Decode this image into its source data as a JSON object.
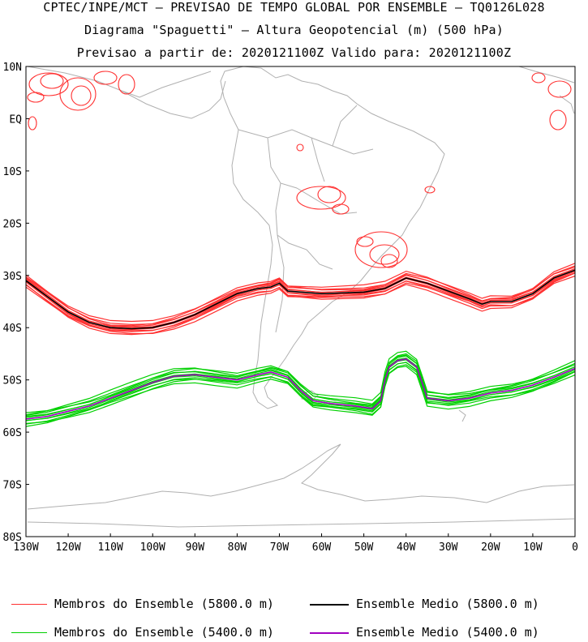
{
  "header": {
    "line1": "CPTEC/INPE/MCT — PREVISAO DE TEMPO GLOBAL POR ENSEMBLE — TQ0126L028",
    "line2": "Diagrama \"Spaguetti\" — Altura Geopotencial (m) (500 hPa)",
    "line3": "Previsao a partir de: 2020121100Z  Valido para: 2020121100Z"
  },
  "map": {
    "lat_labels": [
      "10N",
      "EQ",
      "10S",
      "20S",
      "30S",
      "40S",
      "50S",
      "60S",
      "70S",
      "80S"
    ],
    "lon_labels": [
      "130W",
      "120W",
      "110W",
      "100W",
      "90W",
      "80W",
      "70W",
      "60W",
      "50W",
      "40W",
      "30W",
      "20W",
      "10W",
      "0"
    ],
    "lat_range": [
      -80,
      10
    ],
    "lon_range": [
      -130,
      0
    ]
  },
  "legend": {
    "members_5800": "Membros do Ensemble (5800.0 m)",
    "mean_5800": "Ensemble Medio (5800.0 m)",
    "members_5400": "Membros do Ensemble (5400.0 m)",
    "mean_5400": "Ensemble Medio (5400.0 m)"
  },
  "colors": {
    "members_5800": "#ff3030",
    "mean_5800": "#000000",
    "members_5400": "#00d000",
    "mean_5400": "#a000c0",
    "coast": "#b0b0b0"
  }
}
